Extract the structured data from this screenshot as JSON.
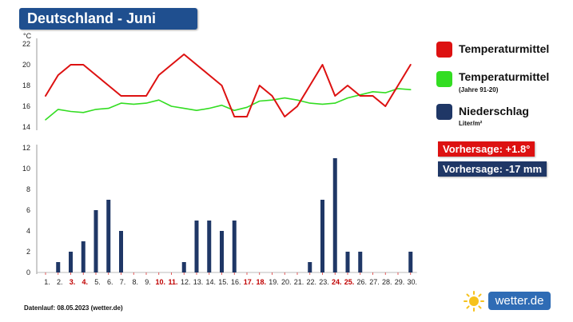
{
  "header": {
    "title": "Deutschland - Juni"
  },
  "colors": {
    "temp": "#dd1111",
    "normal": "#33dd22",
    "precip": "#1f3766",
    "header_bg": "#1f4f8f",
    "weekend": "#c00000",
    "brand": "#2f6cb5"
  },
  "legend": [
    {
      "label": "Temperaturmittel",
      "sub": "",
      "color": "#dd1111"
    },
    {
      "label": "Temperaturmittel",
      "sub": "(Jahre 91-20)",
      "color": "#33dd22"
    },
    {
      "label": "Niederschlag",
      "sub": "Liter/m²",
      "color": "#1f3766"
    }
  ],
  "forecast": {
    "temp": "Vorhersage: +1.8°",
    "precip": "Vorhersage: -17 mm"
  },
  "footer": {
    "text": "Datenlauf: 08.05.2023 (wetter.de)"
  },
  "brand": {
    "text": "wetter.de"
  },
  "chart_data": {
    "type": "line+bar",
    "x_labels": [
      "1.",
      "2.",
      "3.",
      "4.",
      "5.",
      "6.",
      "7.",
      "8.",
      "9.",
      "10.",
      "11.",
      "12.",
      "13.",
      "14.",
      "15.",
      "16.",
      "17.",
      "18.",
      "19.",
      "20.",
      "21.",
      "22.",
      "23.",
      "24.",
      "25.",
      "26.",
      "27.",
      "28.",
      "29.",
      "30."
    ],
    "weekend_days": [
      3,
      4,
      10,
      11,
      17,
      18,
      24,
      25
    ],
    "temperature_unit": "°C",
    "temperature_ticks": [
      14,
      16,
      18,
      20,
      22
    ],
    "temperature_range": [
      14,
      22
    ],
    "series": [
      {
        "name": "Temperaturmittel",
        "values": [
          17,
          19,
          20,
          20,
          19,
          18,
          17,
          17,
          17,
          19,
          20,
          21,
          20,
          19,
          18,
          15,
          15,
          18,
          17,
          15,
          16,
          18,
          20,
          17,
          18,
          17,
          17,
          16,
          18,
          20
        ]
      },
      {
        "name": "Temperaturmittel (Jahre 91-20)",
        "values": [
          14.7,
          15.7,
          15.5,
          15.4,
          15.7,
          15.8,
          16.3,
          16.2,
          16.3,
          16.6,
          16.0,
          15.8,
          15.6,
          15.8,
          16.1,
          15.6,
          15.9,
          16.5,
          16.6,
          16.8,
          16.6,
          16.3,
          16.2,
          16.3,
          16.8,
          17.1,
          17.4,
          17.3,
          17.7,
          17.6
        ]
      },
      {
        "name": "Niederschlag",
        "values": [
          0,
          1,
          2,
          3,
          6,
          7,
          4,
          0,
          0,
          0,
          0,
          1,
          5,
          5,
          4,
          5,
          0,
          0,
          0,
          0,
          0,
          1,
          7,
          11,
          2,
          2,
          0,
          0,
          0,
          2
        ]
      }
    ],
    "precip_ticks": [
      0,
      2,
      4,
      6,
      8,
      10,
      12
    ],
    "precip_range": [
      0,
      12
    ],
    "grid": false
  }
}
